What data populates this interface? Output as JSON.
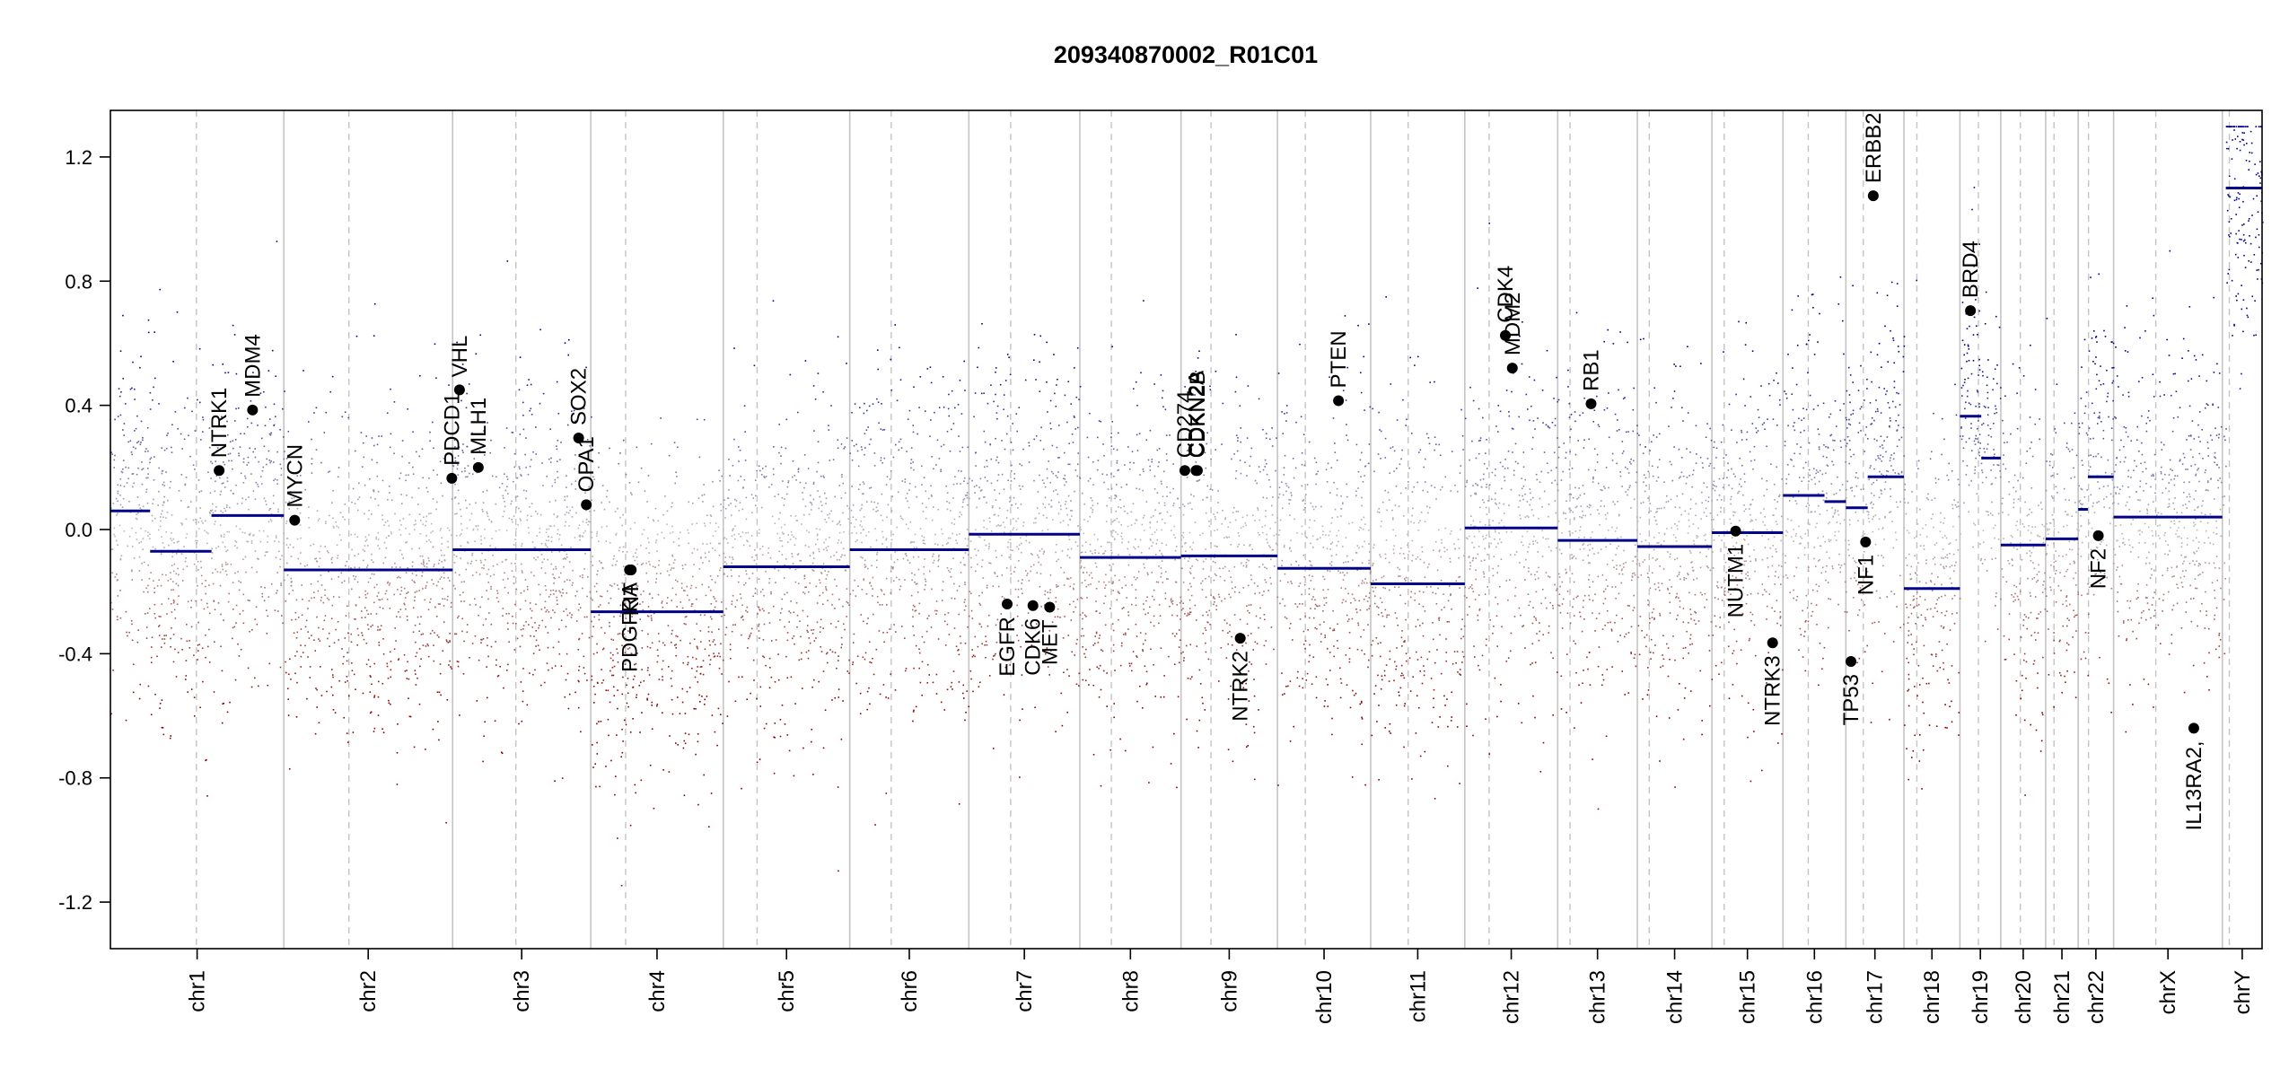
{
  "chart_data": {
    "type": "scatter",
    "title": "209340870002_R01C01",
    "xlabel": "",
    "ylabel": "",
    "ylim": [
      -1.35,
      1.35
    ],
    "yticks": [
      -1.2,
      -0.8,
      -0.4,
      0.0,
      0.4,
      0.8,
      1.2
    ],
    "ytick_labels": [
      "-1.2",
      "-0.8",
      "-0.4",
      "0.0",
      "0.4",
      "0.8",
      "1.2"
    ],
    "grid": false,
    "colors": {
      "gain": "#00008b",
      "loss": "#8b0000",
      "neutral": "#bbbbbb",
      "segment": "#00008b",
      "gene": "#000000",
      "frame": "#000000"
    },
    "chromosomes": [
      {
        "name": "chr1",
        "start": 0.0,
        "end": 248.9,
        "centromere": 123.4
      },
      {
        "name": "chr2",
        "start": 248.9,
        "end": 491.1,
        "centromere": 342.3
      },
      {
        "name": "chr3",
        "start": 491.1,
        "end": 689.4,
        "centromere": 581.9
      },
      {
        "name": "chr4",
        "start": 689.4,
        "end": 879.6,
        "centromere": 739.4
      },
      {
        "name": "chr5",
        "start": 879.6,
        "end": 1061.1,
        "centromere": 928.1
      },
      {
        "name": "chr6",
        "start": 1061.1,
        "end": 1232.0,
        "centromere": 1120.6
      },
      {
        "name": "chr7",
        "start": 1232.0,
        "end": 1391.3,
        "centromere": 1292.0
      },
      {
        "name": "chr8",
        "start": 1391.3,
        "end": 1536.5,
        "centromere": 1436.5
      },
      {
        "name": "chr9",
        "start": 1536.5,
        "end": 1674.9,
        "centromere": 1579.5
      },
      {
        "name": "chr10",
        "start": 1674.9,
        "end": 1808.7,
        "centromere": 1714.9
      },
      {
        "name": "chr11",
        "start": 1808.7,
        "end": 1943.8,
        "centromere": 1862.5
      },
      {
        "name": "chr12",
        "start": 1943.8,
        "end": 2077.1,
        "centromere": 1978.7
      },
      {
        "name": "chr13",
        "start": 2077.1,
        "end": 2191.4,
        "centromere": 2094.8
      },
      {
        "name": "chr14",
        "start": 2191.4,
        "end": 2298.4,
        "centromere": 2208.5
      },
      {
        "name": "chr15",
        "start": 2298.4,
        "end": 2400.4,
        "centromere": 2316.0
      },
      {
        "name": "chr16",
        "start": 2400.4,
        "end": 2490.7,
        "centromere": 2436.7
      },
      {
        "name": "chr17",
        "start": 2490.7,
        "end": 2574.0,
        "centromere": 2515.7
      },
      {
        "name": "chr18",
        "start": 2574.0,
        "end": 2654.4,
        "centromere": 2592.6
      },
      {
        "name": "chr19",
        "start": 2654.4,
        "end": 2713.0,
        "centromere": 2680.9
      },
      {
        "name": "chr20",
        "start": 2713.0,
        "end": 2777.4,
        "centromere": 2741.1
      },
      {
        "name": "chr21",
        "start": 2777.4,
        "end": 2824.1,
        "centromere": 2789.4
      },
      {
        "name": "chr22",
        "start": 2824.1,
        "end": 2874.9,
        "centromere": 2838.9
      },
      {
        "name": "chrX",
        "start": 2874.9,
        "end": 3031.0,
        "centromere": 2935.5
      },
      {
        "name": "chrY",
        "start": 3031.0,
        "end": 3088.0,
        "centromere": 3041.0
      }
    ],
    "segments": [
      {
        "start": 0,
        "end": 57,
        "value": 0.06
      },
      {
        "start": 57,
        "end": 145,
        "value": -0.07
      },
      {
        "start": 145,
        "end": 248.9,
        "value": 0.045
      },
      {
        "start": 248.9,
        "end": 491.1,
        "value": -0.13
      },
      {
        "start": 491.1,
        "end": 689.4,
        "value": -0.065
      },
      {
        "start": 689.4,
        "end": 879.6,
        "value": -0.265
      },
      {
        "start": 879.6,
        "end": 1061.1,
        "value": -0.12
      },
      {
        "start": 1061.1,
        "end": 1232.0,
        "value": -0.065
      },
      {
        "start": 1232.0,
        "end": 1391.3,
        "value": -0.015
      },
      {
        "start": 1391.3,
        "end": 1536.5,
        "value": -0.09
      },
      {
        "start": 1536.5,
        "end": 1674.9,
        "value": -0.085
      },
      {
        "start": 1674.9,
        "end": 1808.7,
        "value": -0.125
      },
      {
        "start": 1808.7,
        "end": 1943.8,
        "value": -0.175
      },
      {
        "start": 1943.8,
        "end": 2077.1,
        "value": 0.005
      },
      {
        "start": 2077.1,
        "end": 2191.4,
        "value": -0.035
      },
      {
        "start": 2191.4,
        "end": 2298.4,
        "value": -0.055
      },
      {
        "start": 2298.4,
        "end": 2400.4,
        "value": -0.01
      },
      {
        "start": 2400.4,
        "end": 2460,
        "value": 0.11
      },
      {
        "start": 2460,
        "end": 2490.7,
        "value": 0.09
      },
      {
        "start": 2490.7,
        "end": 2522,
        "value": 0.07
      },
      {
        "start": 2522,
        "end": 2574.0,
        "value": 0.17
      },
      {
        "start": 2574.0,
        "end": 2654.4,
        "value": -0.19
      },
      {
        "start": 2654.4,
        "end": 2685,
        "value": 0.365
      },
      {
        "start": 2685,
        "end": 2713.0,
        "value": 0.23
      },
      {
        "start": 2713.0,
        "end": 2777.4,
        "value": -0.05
      },
      {
        "start": 2777.4,
        "end": 2824.1,
        "value": -0.03
      },
      {
        "start": 2824.1,
        "end": 2838,
        "value": 0.065
      },
      {
        "start": 2838,
        "end": 2874.9,
        "value": 0.17
      },
      {
        "start": 2874.9,
        "end": 3031.0,
        "value": 0.04
      },
      {
        "start": 3036,
        "end": 3088.0,
        "value": 1.1
      }
    ],
    "genes": [
      {
        "name": "NTRK1",
        "pos": 156.0,
        "value": 0.19
      },
      {
        "name": "MDM4",
        "pos": 204.0,
        "value": 0.385
      },
      {
        "name": "MYCN",
        "pos": 264.5,
        "value": 0.03
      },
      {
        "name": "PDCD1",
        "pos": 490.0,
        "value": 0.165
      },
      {
        "name": "VHL",
        "pos": 501.0,
        "value": 0.45
      },
      {
        "name": "MLH1",
        "pos": 528.0,
        "value": 0.2
      },
      {
        "name": "SOX2",
        "pos": 672.0,
        "value": 0.295
      },
      {
        "name": "OPA1",
        "pos": 683.0,
        "value": 0.08
      },
      {
        "name": "PDGFRA",
        "pos": 745.0,
        "value": -0.13
      },
      {
        "name": "KIT",
        "pos": 747.5,
        "value": -0.13
      },
      {
        "name": "EGFR",
        "pos": 1287.0,
        "value": -0.24
      },
      {
        "name": "CDK6",
        "pos": 1324.0,
        "value": -0.245
      },
      {
        "name": "MET",
        "pos": 1348.0,
        "value": -0.25
      },
      {
        "name": "CD274",
        "pos": 1542.0,
        "value": 0.19
      },
      {
        "name": "CDKN2A",
        "pos": 1558.0,
        "value": 0.19
      },
      {
        "name": "CDKN2B",
        "pos": 1560.0,
        "value": 0.19
      },
      {
        "name": "NTRK2",
        "pos": 1621.5,
        "value": -0.35
      },
      {
        "name": "PTEN",
        "pos": 1762.5,
        "value": 0.415
      },
      {
        "name": "CDK4",
        "pos": 2002.0,
        "value": 0.625
      },
      {
        "name": "MDM2",
        "pos": 2012.0,
        "value": 0.52
      },
      {
        "name": "RB1",
        "pos": 2125.0,
        "value": 0.405
      },
      {
        "name": "NUTM1",
        "pos": 2332.5,
        "value": -0.005
      },
      {
        "name": "NTRK3",
        "pos": 2385.5,
        "value": -0.365
      },
      {
        "name": "TP53",
        "pos": 2498.0,
        "value": -0.425
      },
      {
        "name": "NF1",
        "pos": 2519.0,
        "value": -0.04
      },
      {
        "name": "ERBB2",
        "pos": 2530.0,
        "value": 1.075
      },
      {
        "name": "BRD4",
        "pos": 2669.5,
        "value": 0.705
      },
      {
        "name": "NF2",
        "pos": 2853.0,
        "value": -0.02
      },
      {
        "name": "IL13RA2, ",
        "pos": 2990.0,
        "value": -0.64
      }
    ]
  }
}
